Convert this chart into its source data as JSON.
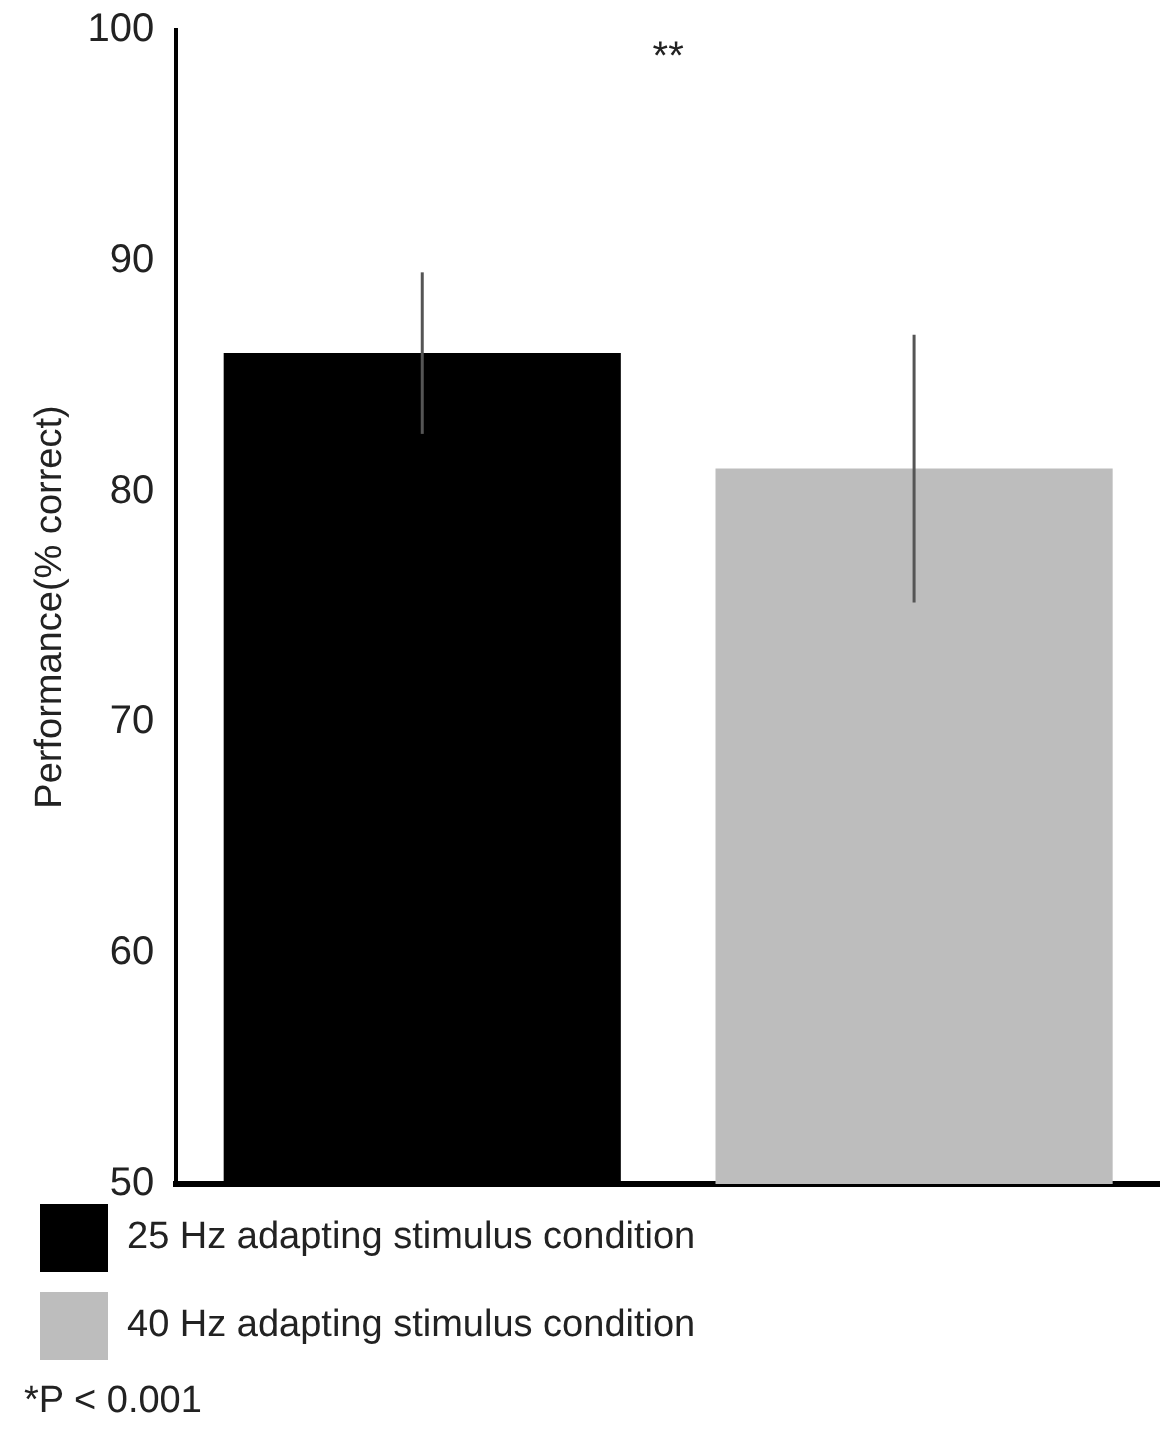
{
  "chart_data": {
    "type": "bar",
    "ylabel": "Performance(% correct)",
    "categories": [
      null,
      null
    ],
    "series": [
      {
        "name": "25 Hz adapting stimulus condition",
        "color": "#000000",
        "values": [
          86,
          null
        ],
        "errors": [
          3.5,
          null
        ]
      },
      {
        "name": "40 Hz adapting stimulus condition",
        "color": "#bdbdbd",
        "values": [
          null,
          81
        ],
        "errors": [
          null,
          5.8
        ]
      }
    ],
    "ylim": [
      50,
      100
    ],
    "yticks": [
      50,
      60,
      70,
      80,
      90,
      100
    ],
    "grid": false,
    "legend": "bottom",
    "tick_labels": "y",
    "annotations": [
      "**",
      "*P < 0.001"
    ]
  }
}
